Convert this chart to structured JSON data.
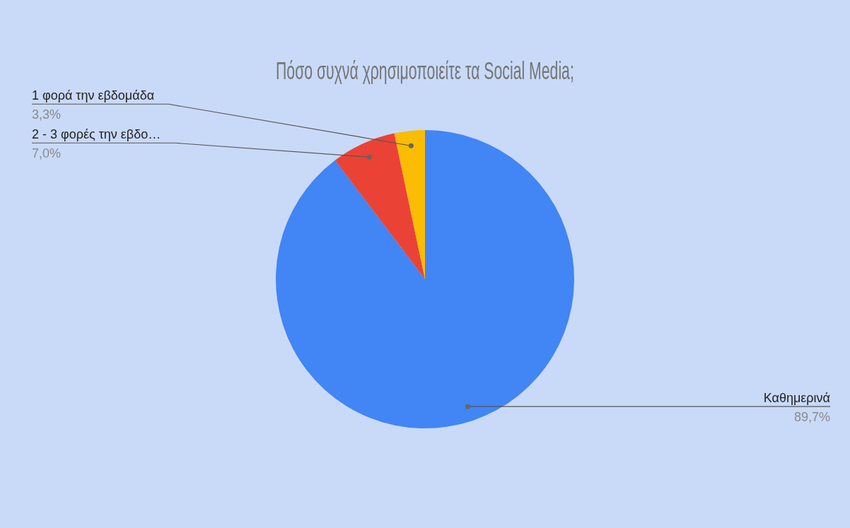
{
  "chart_data": {
    "type": "pie",
    "title": "Πόσο συχνά χρησιμοποιείτε τα Social Media;",
    "categories": [
      "Καθημερινά",
      "2 - 3 φορές την εβδο…",
      "1 φορά την εβδομάδα"
    ],
    "values": [
      89.7,
      7.0,
      3.3
    ],
    "value_labels": [
      "89,7%",
      "7,0%",
      "3,3%"
    ],
    "colors": [
      "#4285f4",
      "#ea4335",
      "#fbbc04"
    ],
    "legend": false
  }
}
